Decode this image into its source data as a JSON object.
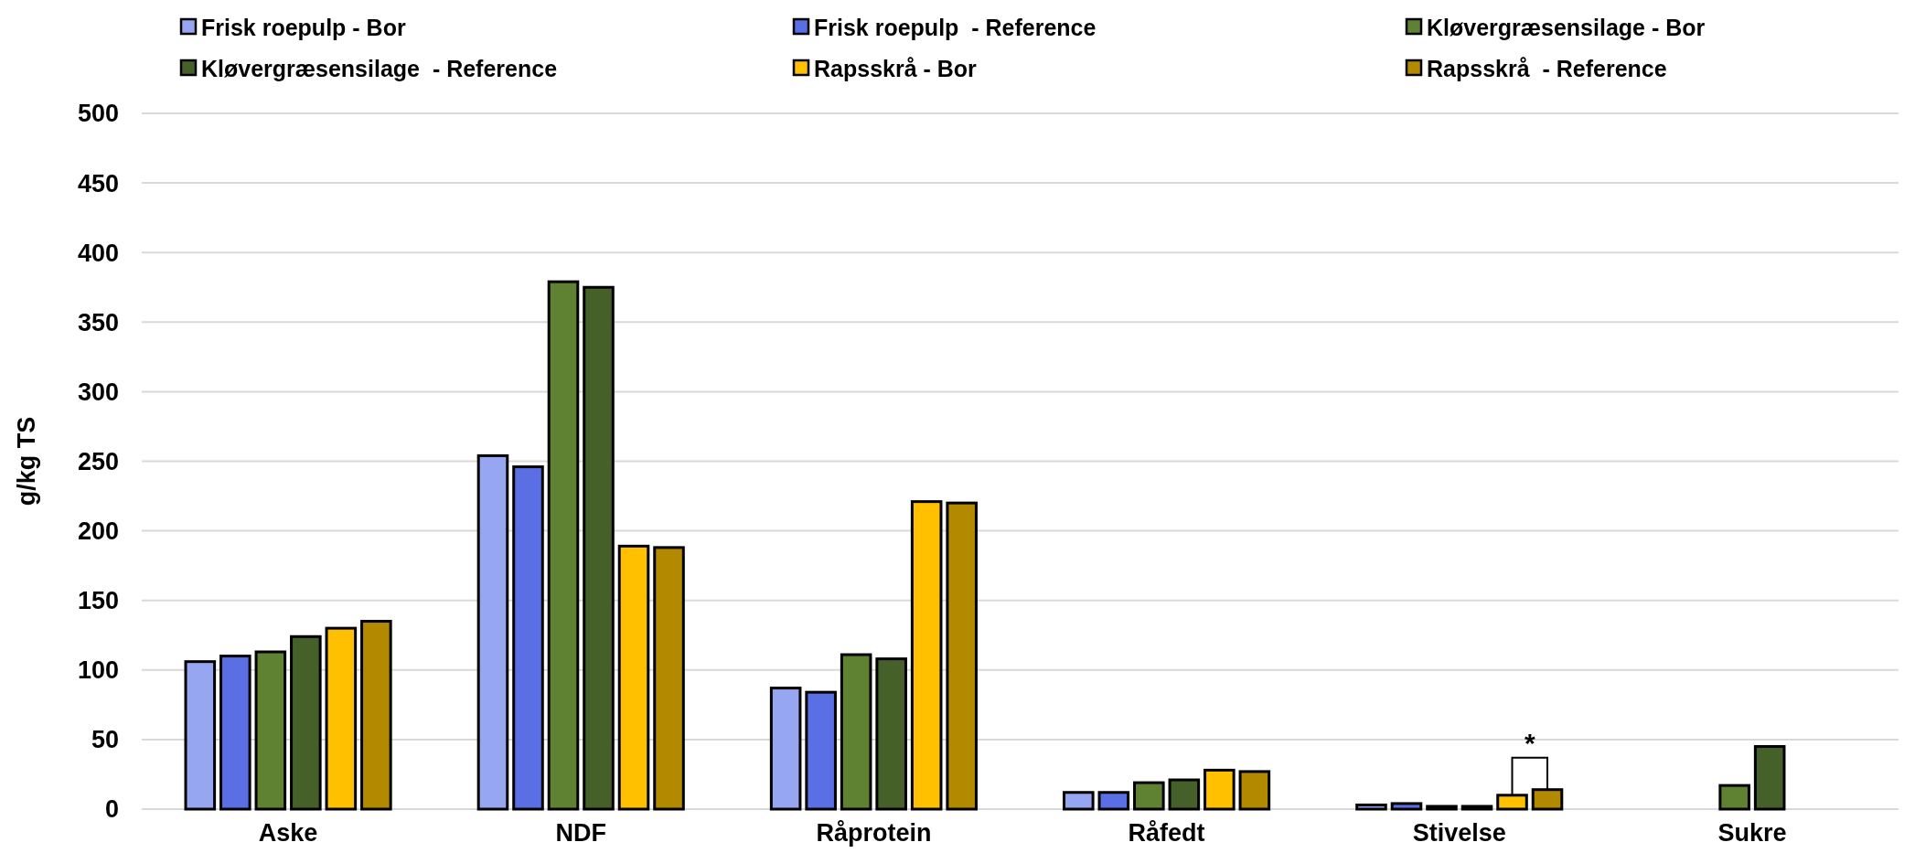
{
  "chart_data": {
    "type": "bar",
    "ylabel": "g/kg TS",
    "categories": [
      "Aske",
      "NDF",
      "Råprotein",
      "Råfedt",
      "Stivelse",
      "Sukre"
    ],
    "series": [
      {
        "name": "Frisk roepulp - Bor",
        "color": "#97a6f0",
        "values": [
          106,
          254,
          87,
          12,
          3,
          null
        ]
      },
      {
        "name": "Frisk roepulp  - Reference",
        "color": "#5a6fe4",
        "values": [
          110,
          246,
          84,
          12,
          4,
          null
        ]
      },
      {
        "name": "Kløvergræsensilage - Bor",
        "color": "#5f8232",
        "values": [
          113,
          379,
          111,
          19,
          2,
          17
        ]
      },
      {
        "name": "Kløvergræsensilage  - Reference",
        "color": "#46602a",
        "values": [
          124,
          375,
          108,
          21,
          2,
          45
        ]
      },
      {
        "name": "Rapsskrå - Bor",
        "color": "#ffc000",
        "values": [
          130,
          189,
          221,
          28,
          10,
          null
        ]
      },
      {
        "name": "Rapsskrå  - Reference",
        "color": "#b38900",
        "values": [
          135,
          188,
          220,
          27,
          14,
          null
        ]
      }
    ],
    "ylim": [
      0,
      500
    ],
    "yticks": [
      0,
      50,
      100,
      150,
      200,
      250,
      300,
      350,
      400,
      450,
      500
    ],
    "grid": "y",
    "legend": "top",
    "annotations": [
      "*"
    ]
  }
}
